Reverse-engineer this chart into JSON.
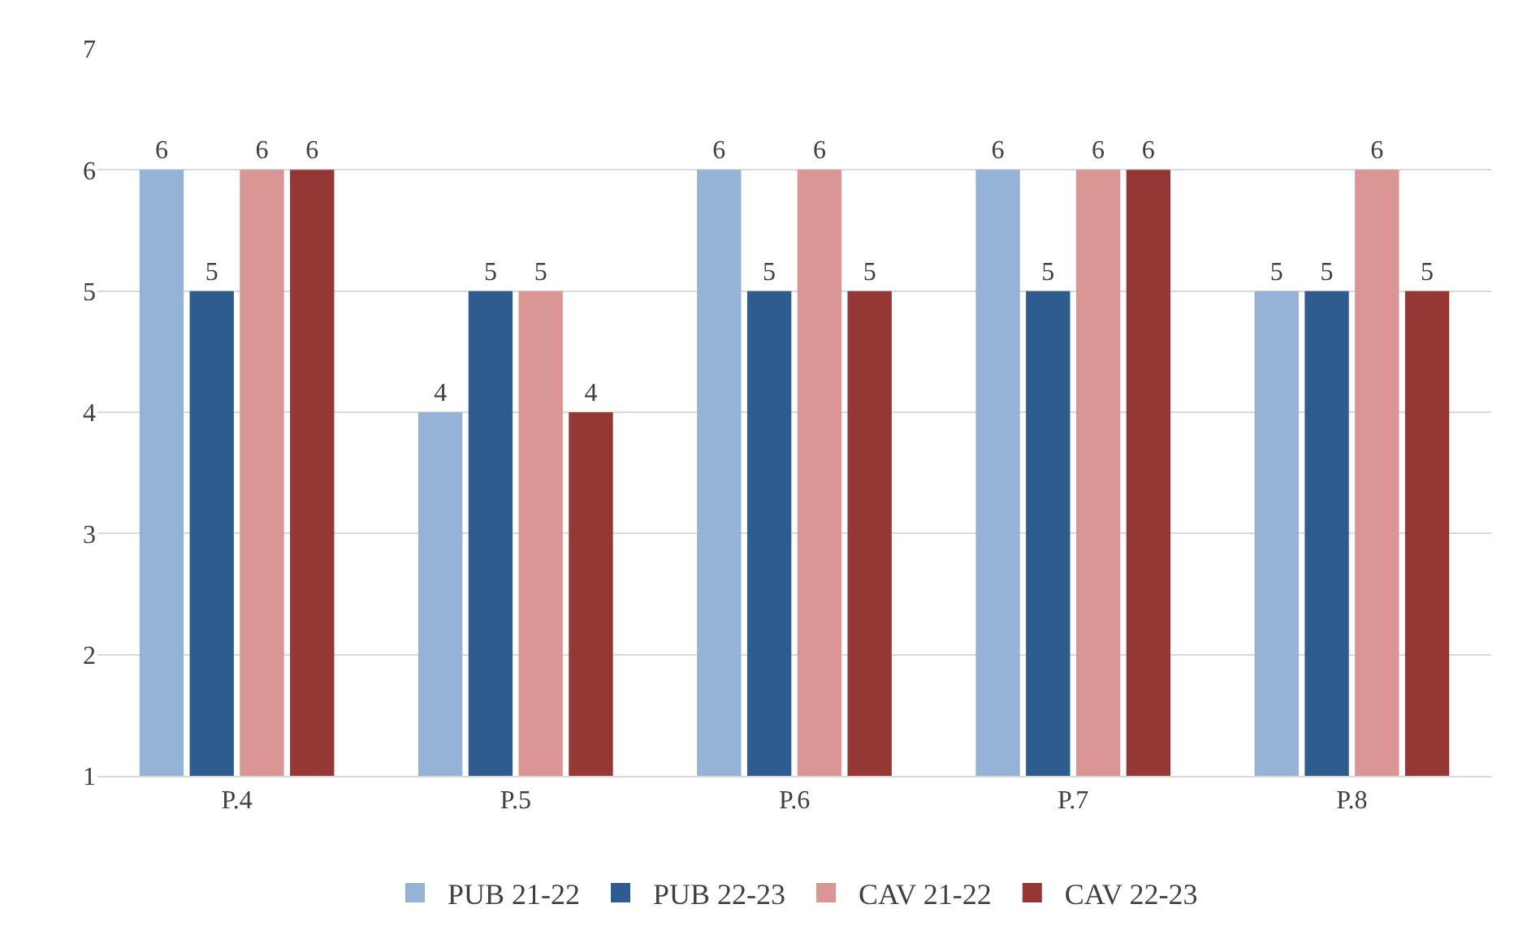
{
  "chart_data": {
    "type": "bar",
    "categories": [
      "P.4",
      "P.5",
      "P.6",
      "P.7",
      "P.8"
    ],
    "series": [
      {
        "name": "PUB 21-22",
        "color": "#95b3d7",
        "values": [
          6,
          4,
          6,
          6,
          5
        ]
      },
      {
        "name": "PUB 22-23",
        "color": "#2f5c8f",
        "values": [
          5,
          5,
          5,
          5,
          5
        ]
      },
      {
        "name": "CAV 21-22",
        "color": "#da9694",
        "values": [
          6,
          5,
          6,
          6,
          6
        ]
      },
      {
        "name": "CAV 22-23",
        "color": "#953735",
        "values": [
          6,
          4,
          5,
          6,
          5
        ]
      }
    ],
    "ylim": [
      1,
      7
    ],
    "yticks": [
      1,
      2,
      3,
      4,
      5,
      6,
      7
    ],
    "grid": "y",
    "legend": "bottom",
    "data_labels": true
  }
}
